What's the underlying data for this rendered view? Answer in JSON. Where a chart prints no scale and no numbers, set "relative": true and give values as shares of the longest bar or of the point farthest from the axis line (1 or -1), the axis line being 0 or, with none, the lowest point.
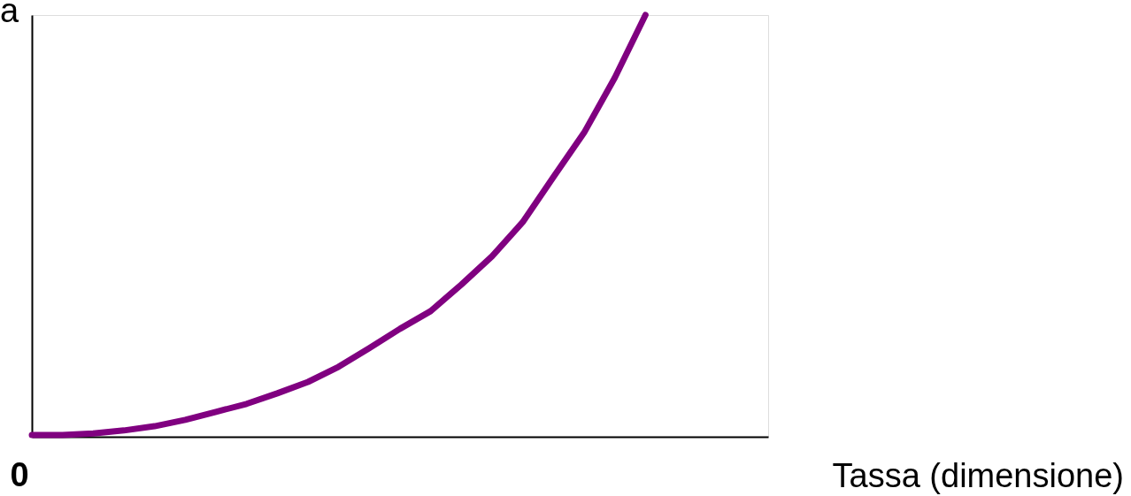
{
  "chart_data": {
    "type": "line",
    "relative": true,
    "xlabel": "Tassa (dimensione)",
    "ylabel": "a",
    "annotations": [
      "0"
    ],
    "categories": [
      null,
      null,
      null,
      null,
      null,
      null,
      null,
      null,
      null,
      null,
      null,
      null,
      null,
      null,
      null,
      null,
      null,
      null,
      null,
      null,
      null,
      null,
      null,
      null,
      null
    ],
    "series": [
      {
        "color": "#800080",
        "values": [
          0.004,
          0.004,
          0.008,
          0.015,
          0.025,
          0.04,
          0.059,
          0.078,
          0.103,
          0.13,
          0.166,
          0.21,
          0.256,
          0.298,
          0.361,
          0.428,
          0.509,
          0.616,
          0.721,
          0.851,
          1,
          null,
          null,
          null,
          null
        ]
      }
    ],
    "grid": false,
    "legend": false,
    "marker": "none",
    "line_style": "solid"
  }
}
